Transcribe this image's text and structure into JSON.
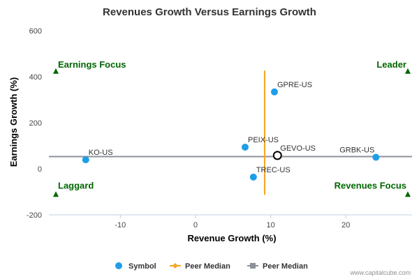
{
  "chart_data": {
    "type": "scatter",
    "title": "Revenues Growth Versus Earnings Growth",
    "xlabel": "Revenue Growth (%)",
    "ylabel": "Earnings Growth (%)",
    "xlim": [
      -19.5,
      28.8
    ],
    "ylim": [
      -200,
      600
    ],
    "x_ticks": [
      -10,
      0,
      10,
      20
    ],
    "x_tick_labels": [
      "-10",
      "0",
      "10",
      "20"
    ],
    "y_ticks": [
      -200,
      0,
      200,
      400,
      600
    ],
    "y_tick_labels": [
      "-200",
      "0",
      "200",
      "400",
      "600"
    ],
    "grid": false,
    "series": [
      {
        "name": "Symbol",
        "color": "#1f9ee8",
        "points": [
          {
            "label": "KO-US",
            "x": -14.6,
            "y": 39
          },
          {
            "label": "GPRE-US",
            "x": 10.5,
            "y": 334
          },
          {
            "label": "PEIX-US",
            "x": 6.6,
            "y": 94
          },
          {
            "label": "GEVO-US",
            "x": 10.9,
            "y": 58,
            "highlighted": true
          },
          {
            "label": "TREC-US",
            "x": 7.7,
            "y": -36
          },
          {
            "label": "GRBK-US",
            "x": 24.0,
            "y": 50
          }
        ]
      },
      {
        "name": "Peer Median",
        "color": "#f5a623",
        "orientation": "vertical",
        "x": 9.2,
        "y_range": [
          -113,
          427
        ]
      },
      {
        "name": "Peer Median",
        "color": "#8c9199",
        "orientation": "horizontal",
        "y": 53,
        "x_range": [
          -19.5,
          28.8
        ]
      }
    ],
    "quadrants": [
      {
        "label": "Earnings Focus",
        "position": "top-left",
        "marker_y": 425
      },
      {
        "label": "Leader",
        "position": "top-right",
        "marker_y": 425
      },
      {
        "label": "Laggard",
        "position": "bottom-left",
        "marker_y": -110
      },
      {
        "label": "Revenues Focus",
        "position": "bottom-right",
        "marker_y": -110
      }
    ],
    "legend": {
      "placement": "bottom-center",
      "items": [
        "Symbol",
        "Peer Median",
        "Peer Median"
      ]
    },
    "quadrant_color": "#006600"
  },
  "credit": "www.capitalcube.com"
}
